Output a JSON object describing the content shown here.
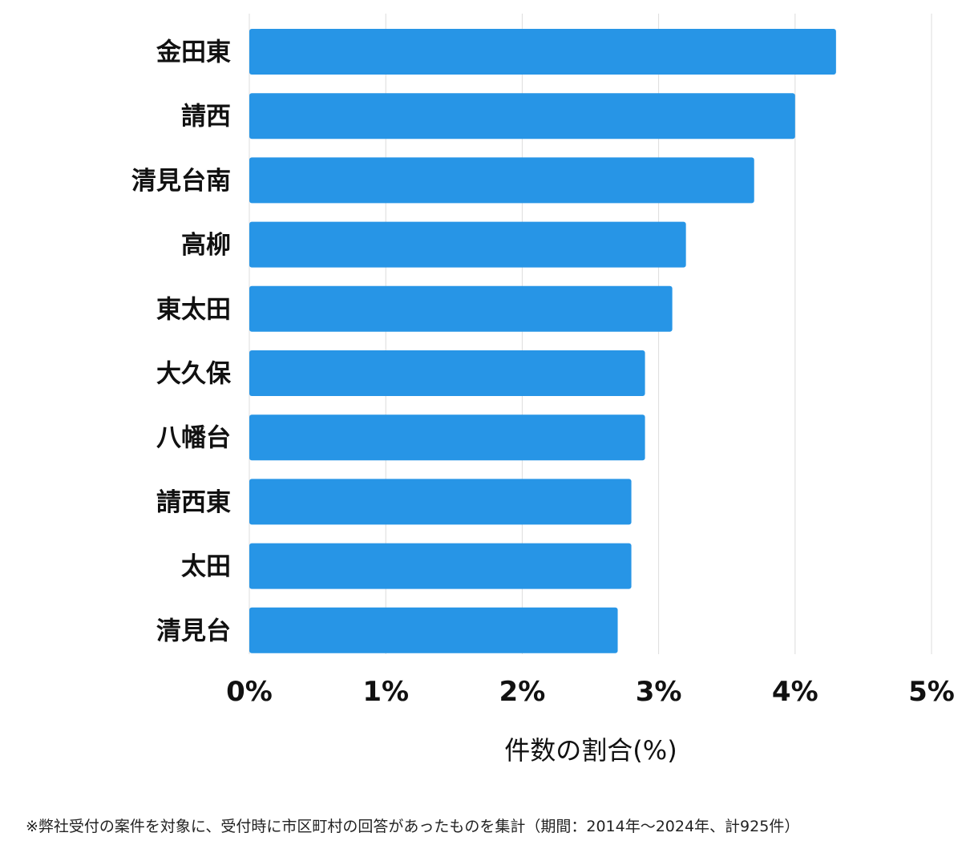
{
  "chart_data": {
    "type": "bar",
    "orientation": "horizontal",
    "categories": [
      "金田東",
      "請西",
      "清見台南",
      "高柳",
      "東太田",
      "大久保",
      "八幡台",
      "請西東",
      "太田",
      "清見台"
    ],
    "values": [
      4.3,
      4.0,
      3.7,
      3.2,
      3.1,
      2.9,
      2.9,
      2.8,
      2.8,
      2.7
    ],
    "xlim": [
      0,
      5
    ],
    "x_ticks": [
      "0%",
      "1%",
      "2%",
      "3%",
      "4%",
      "5%"
    ],
    "xlabel": "件数の割合(%)",
    "ylabel": "",
    "title": "",
    "grid": "vertical",
    "legend": "none",
    "bar_color": "#2795e6",
    "grid_color": "#dcdcdc"
  },
  "footnote": "※弊社受付の案件を対象に、受付時に市区町村の回答があったものを集計（期間：2014年〜2024年、計925件）"
}
